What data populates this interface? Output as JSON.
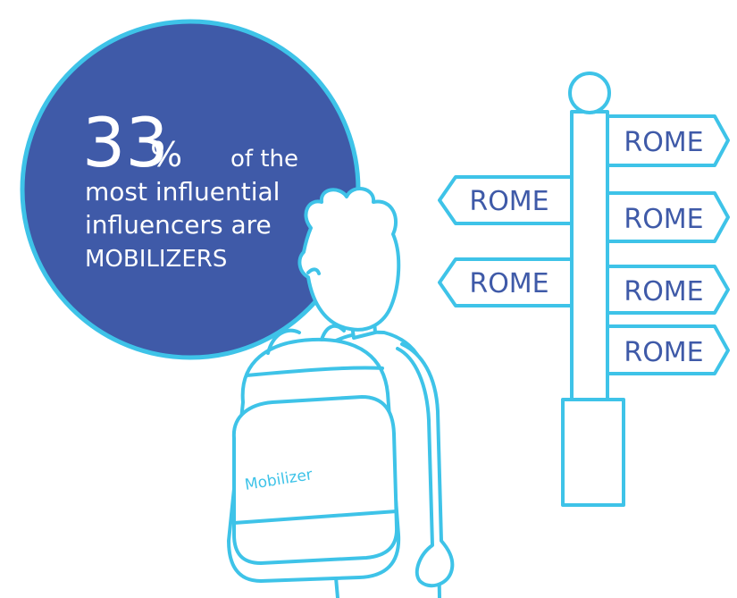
{
  "stat": {
    "number": "33",
    "unit": "%",
    "lines": [
      "of the",
      "most influential",
      "influencers are",
      "MOBILIZERS"
    ]
  },
  "backpack_label": "Mobilizer",
  "signs": [
    {
      "label": "ROME"
    },
    {
      "label": "ROME"
    },
    {
      "label": "ROME"
    },
    {
      "label": "ROME"
    },
    {
      "label": "ROME"
    },
    {
      "label": "ROME"
    }
  ]
}
